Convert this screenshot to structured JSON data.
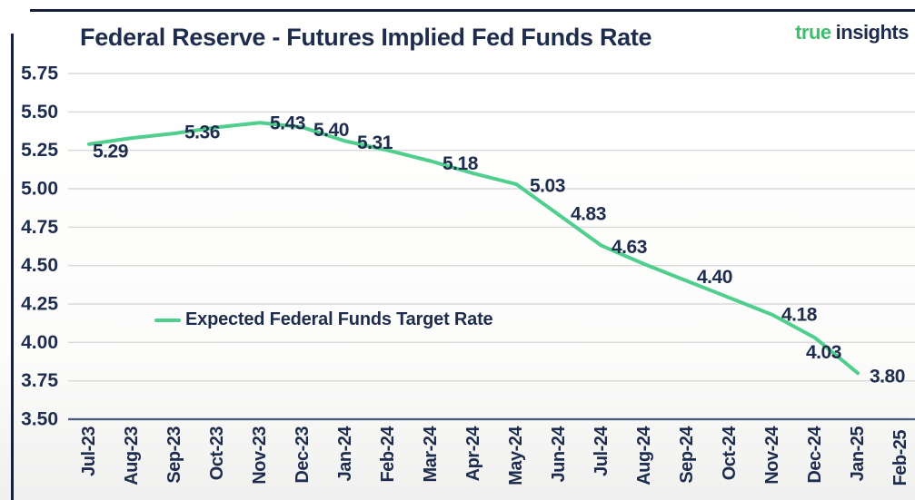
{
  "header": {
    "title": "Federal Reserve - Futures Implied Fed Funds Rate",
    "logo": {
      "part1": "true",
      "part2": "insights"
    }
  },
  "legend": {
    "label": "Expected Federal Funds Target Rate"
  },
  "colors": {
    "line_green": "#4fce8e",
    "logo_green": "#3cc06e",
    "navy_text": "#1e2c4d",
    "gridline": "#d9d9d9",
    "axis_line": "#49597d",
    "frame_border": "#16203a"
  },
  "chart_data": {
    "type": "line",
    "title": "Federal Reserve - Futures Implied Fed Funds Rate",
    "categories": [
      "Jul-23",
      "Aug-23",
      "Sep-23",
      "Oct-23",
      "Nov-23",
      "Dec-23",
      "Jan-24",
      "Feb-24",
      "Mar-24",
      "Apr-24",
      "May-24",
      "Jun-24",
      "Jul-24",
      "Aug-24",
      "Sep-24",
      "Oct-24",
      "Nov-24",
      "Dec-24",
      "Jan-25",
      "Feb-25"
    ],
    "series": [
      {
        "name": "Expected Federal Funds Target Rate",
        "values": [
          5.29,
          5.33,
          5.36,
          5.4,
          5.43,
          5.4,
          5.31,
          5.25,
          5.18,
          5.1,
          5.03,
          4.83,
          4.63,
          4.51,
          4.4,
          4.29,
          4.18,
          4.03,
          3.8,
          null
        ]
      }
    ],
    "data_labels": [
      "5.29",
      null,
      "5.36",
      null,
      "5.43",
      "5.40",
      "5.31",
      null,
      "5.18",
      null,
      "5.03",
      "4.83",
      "4.63",
      null,
      "4.40",
      null,
      "4.18",
      "4.03",
      "3.80",
      null
    ],
    "xlabel": "",
    "ylabel": "",
    "ylim": [
      3.5,
      5.75
    ],
    "ytick_step": 0.25,
    "ytick_labels": [
      "5.75",
      "5.50",
      "5.25",
      "5.00",
      "4.75",
      "4.50",
      "4.25",
      "4.00",
      "3.75",
      "3.50"
    ],
    "grid": "horizontal",
    "legend_position": "inside-center-left"
  }
}
